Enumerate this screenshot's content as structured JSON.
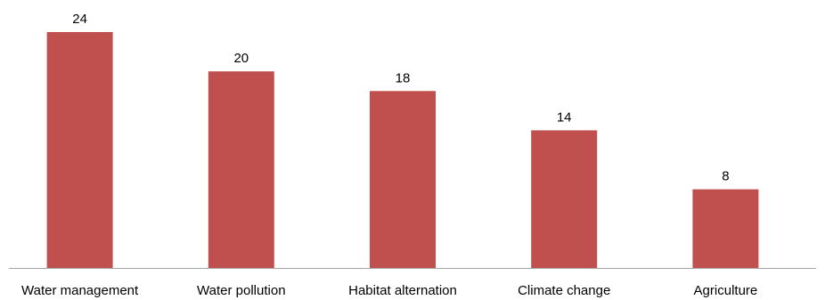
{
  "chart_data": {
    "type": "bar",
    "categories": [
      "Water management",
      "Water pollution",
      "Habitat alternation",
      "Climate change",
      "Agriculture"
    ],
    "values": [
      24,
      20,
      18,
      14,
      8
    ],
    "ylim": [
      0,
      24
    ],
    "grid": false,
    "legend": "none",
    "bar_color": "#c0504d",
    "axis_color": "#a6a6a6"
  }
}
